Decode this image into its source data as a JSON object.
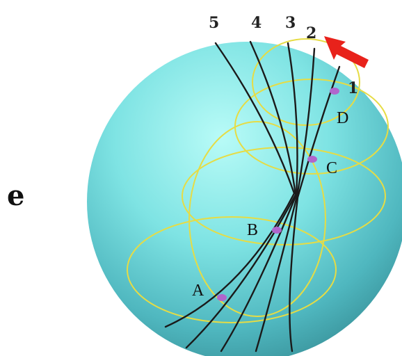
{
  "figure": {
    "panel_label": "e",
    "line_labels": [
      "5",
      "4",
      "3",
      "2",
      "1"
    ],
    "point_labels": [
      "A",
      "B",
      "C",
      "D"
    ],
    "colors": {
      "sphere_light": "#9ff4f0",
      "sphere_mid": "#5cc9cf",
      "sphere_dark": "#2f8f98",
      "circle": "#e8e04a",
      "curve": "#1a1a1a",
      "point": "#b066cc",
      "arrow": "#e8221b"
    }
  }
}
